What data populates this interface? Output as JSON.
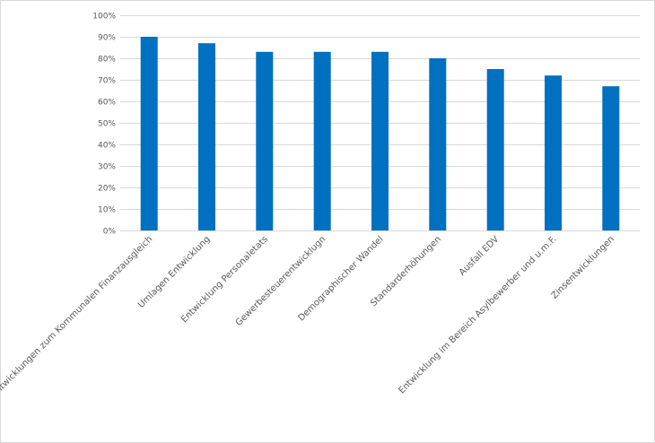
{
  "chart_data": {
    "type": "bar",
    "categories": [
      "Entwicklungen zum Kommunalen Finanzausgleich",
      "Umlagen Entwicklung",
      "Entwicklung Personaletats",
      "Gewerbesteuerentwicklugn",
      "Demographischer Wandel",
      "Standarderhöhungen",
      "Ausfall EDV",
      "Entwicklung im Bereich Asylbewerber und u.m.F.",
      "Zinsentwicklungen"
    ],
    "values": [
      0.9,
      0.87,
      0.83,
      0.83,
      0.83,
      0.8,
      0.75,
      0.72,
      0.67
    ],
    "ylim": [
      0,
      1
    ],
    "yticks": [
      "0%",
      "10%",
      "20%",
      "30%",
      "40%",
      "50%",
      "60%",
      "70%",
      "80%",
      "90%",
      "100%"
    ],
    "grid": true,
    "bar_color": "#0070c0"
  }
}
